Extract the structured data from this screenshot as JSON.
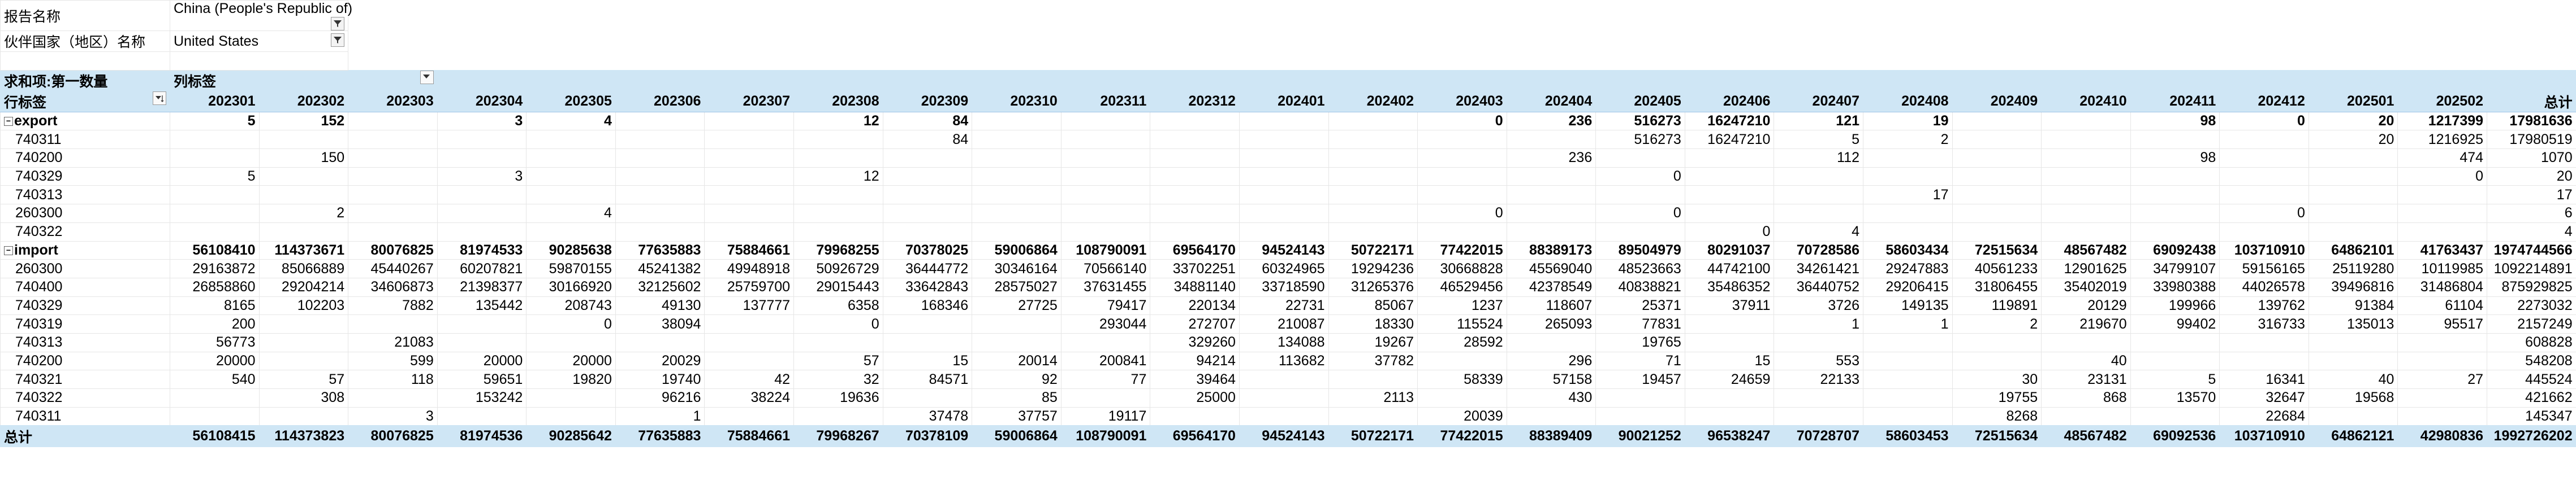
{
  "filters": [
    {
      "label": "报告名称",
      "value": "China (People's Republic of)"
    },
    {
      "label": "伙伴国家（地区）名称",
      "value": "United States"
    }
  ],
  "pivot": {
    "value_label": "求和项:第一数量",
    "col_label": "列标签",
    "row_label": "行标签",
    "total_label": "总计",
    "columns": [
      "202301",
      "202302",
      "202303",
      "202304",
      "202305",
      "202306",
      "202307",
      "202308",
      "202309",
      "202310",
      "202311",
      "202312",
      "202401",
      "202402",
      "202403",
      "202404",
      "202405",
      "202406",
      "202407",
      "202408",
      "202409",
      "202410",
      "202411",
      "202412",
      "202501",
      "202502",
      "总计"
    ],
    "groups": [
      {
        "name": "export",
        "subtotal": [
          "5",
          "152",
          "",
          "3",
          "4",
          "",
          "",
          "12",
          "84",
          "",
          "",
          "",
          "",
          "",
          "0",
          "236",
          "516273",
          "16247210",
          "121",
          "19",
          "",
          "",
          "98",
          "0",
          "20",
          "1217399",
          "17981636"
        ],
        "rows": [
          {
            "code": "740311",
            "values": [
              "",
              "",
              "",
              "",
              "",
              "",
              "",
              "",
              "84",
              "",
              "",
              "",
              "",
              "",
              "",
              "",
              "516273",
              "16247210",
              "5",
              "2",
              "",
              "",
              "",
              "",
              "20",
              "1216925",
              "17980519"
            ]
          },
          {
            "code": "740200",
            "values": [
              "",
              "150",
              "",
              "",
              "",
              "",
              "",
              "",
              "",
              "",
              "",
              "",
              "",
              "",
              "",
              "236",
              "",
              "",
              "112",
              "",
              "",
              "",
              "98",
              "",
              "",
              "474",
              "1070"
            ]
          },
          {
            "code": "740329",
            "values": [
              "5",
              "",
              "",
              "3",
              "",
              "",
              "",
              "12",
              "",
              "",
              "",
              "",
              "",
              "",
              "",
              "",
              "0",
              "",
              "",
              "",
              "",
              "",
              "",
              "",
              "",
              "0",
              "20"
            ]
          },
          {
            "code": "740313",
            "values": [
              "",
              "",
              "",
              "",
              "",
              "",
              "",
              "",
              "",
              "",
              "",
              "",
              "",
              "",
              "",
              "",
              "",
              "",
              "",
              "17",
              "",
              "",
              "",
              "",
              "",
              "",
              "17"
            ]
          },
          {
            "code": "260300",
            "values": [
              "",
              "2",
              "",
              "",
              "4",
              "",
              "",
              "",
              "",
              "",
              "",
              "",
              "",
              "",
              "0",
              "",
              "0",
              "",
              "",
              "",
              "",
              "",
              "",
              "0",
              "",
              "",
              "6"
            ]
          },
          {
            "code": "740322",
            "values": [
              "",
              "",
              "",
              "",
              "",
              "",
              "",
              "",
              "",
              "",
              "",
              "",
              "",
              "",
              "",
              "",
              "",
              "0",
              "4",
              "",
              "",
              "",
              "",
              "",
              "",
              "",
              "4"
            ]
          }
        ]
      },
      {
        "name": "import",
        "subtotal": [
          "56108410",
          "114373671",
          "80076825",
          "81974533",
          "90285638",
          "77635883",
          "75884661",
          "79968255",
          "70378025",
          "59006864",
          "108790091",
          "69564170",
          "94524143",
          "50722171",
          "77422015",
          "88389173",
          "89504979",
          "80291037",
          "70728586",
          "58603434",
          "72515634",
          "48567482",
          "69092438",
          "103710910",
          "64862101",
          "41763437",
          "1974744566"
        ],
        "rows": [
          {
            "code": "260300",
            "values": [
              "29163872",
              "85066889",
              "45440267",
              "60207821",
              "59870155",
              "45241382",
              "49948918",
              "50926729",
              "36444772",
              "30346164",
              "70566140",
              "33702251",
              "60324965",
              "19294236",
              "30668828",
              "45569040",
              "48523663",
              "44742100",
              "34261421",
              "29247883",
              "40561233",
              "12901625",
              "34799107",
              "59156165",
              "25119280",
              "10119985",
              "1092214891"
            ]
          },
          {
            "code": "740400",
            "values": [
              "26858860",
              "29204214",
              "34606873",
              "21398377",
              "30166920",
              "32125602",
              "25759700",
              "29015443",
              "33642843",
              "28575027",
              "37631455",
              "34881140",
              "33718590",
              "31265376",
              "46529456",
              "42378549",
              "40838821",
              "35486352",
              "36440752",
              "29206415",
              "31806455",
              "35402019",
              "33980388",
              "44026578",
              "39496816",
              "31486804",
              "875929825"
            ]
          },
          {
            "code": "740329",
            "values": [
              "8165",
              "102203",
              "7882",
              "135442",
              "208743",
              "49130",
              "137777",
              "6358",
              "168346",
              "27725",
              "79417",
              "220134",
              "22731",
              "85067",
              "1237",
              "118607",
              "25371",
              "37911",
              "3726",
              "149135",
              "119891",
              "20129",
              "199966",
              "139762",
              "91384",
              "61104",
              "2273032"
            ]
          },
          {
            "code": "740319",
            "values": [
              "200",
              "",
              "",
              "",
              "0",
              "38094",
              "",
              "0",
              "",
              "",
              "293044",
              "272707",
              "210087",
              "18330",
              "115524",
              "265093",
              "77831",
              "",
              "1",
              "1",
              "2",
              "219670",
              "99402",
              "316733",
              "135013",
              "95517",
              "2157249"
            ]
          },
          {
            "code": "740313",
            "values": [
              "56773",
              "",
              "21083",
              "",
              "",
              "",
              "",
              "",
              "",
              "",
              "",
              "329260",
              "134088",
              "19267",
              "28592",
              "",
              "19765",
              "",
              "",
              "",
              "",
              "",
              "",
              "",
              "",
              "",
              "608828"
            ]
          },
          {
            "code": "740200",
            "values": [
              "20000",
              "",
              "599",
              "20000",
              "20000",
              "20029",
              "",
              "57",
              "15",
              "20014",
              "200841",
              "94214",
              "113682",
              "37782",
              "",
              "296",
              "71",
              "15",
              "553",
              "",
              "",
              "40",
              "",
              "",
              "",
              "",
              "548208"
            ]
          },
          {
            "code": "740321",
            "values": [
              "540",
              "57",
              "118",
              "59651",
              "19820",
              "19740",
              "42",
              "32",
              "84571",
              "92",
              "77",
              "39464",
              "",
              "",
              "58339",
              "57158",
              "19457",
              "24659",
              "22133",
              "",
              "30",
              "23131",
              "5",
              "16341",
              "40",
              "27",
              "445524"
            ]
          },
          {
            "code": "740322",
            "values": [
              "",
              "308",
              "",
              "153242",
              "",
              "96216",
              "38224",
              "19636",
              "",
              "85",
              "",
              "25000",
              "",
              "2113",
              "",
              "430",
              "",
              "",
              "",
              "",
              "19755",
              "868",
              "13570",
              "32647",
              "19568",
              "",
              "421662"
            ]
          },
          {
            "code": "740311",
            "values": [
              "",
              "",
              "3",
              "",
              "",
              "1",
              "",
              "",
              "37478",
              "37757",
              "19117",
              "",
              "",
              "",
              "20039",
              "",
              "",
              "",
              "",
              "",
              "8268",
              "",
              "",
              "22684",
              "",
              "",
              "145347"
            ]
          }
        ]
      }
    ],
    "grand_total": [
      "56108415",
      "114373823",
      "80076825",
      "81974536",
      "90285642",
      "77635883",
      "75884661",
      "79968267",
      "70378109",
      "59006864",
      "108790091",
      "69564170",
      "94524143",
      "50722171",
      "77422015",
      "88389409",
      "90021252",
      "96538247",
      "70728707",
      "58603453",
      "72515634",
      "48567482",
      "69092536",
      "103710910",
      "64862121",
      "42980836",
      "1992726202"
    ]
  }
}
